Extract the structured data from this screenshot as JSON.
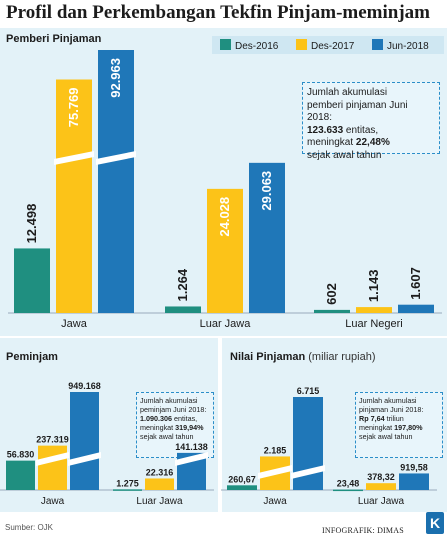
{
  "title": "Profil dan Perkembangan Tekfin Pinjam-meminjam",
  "colors": {
    "des2016": "#1f8f80",
    "des2017": "#fcc318",
    "jun2018": "#1f77b8",
    "panel": "#e3f2f8",
    "legend_bg": "#cfe7f2",
    "note_border": "#2b8ec9"
  },
  "legend": [
    {
      "label": "Des-2016",
      "color": "#1f8f80"
    },
    {
      "label": "Des-2017",
      "color": "#fcc318"
    },
    {
      "label": "Jun-2018",
      "color": "#1f77b8"
    }
  ],
  "top": {
    "label": "Pemberi Pinjaman",
    "note": {
      "line1": "Jumlah akumulasi",
      "line2": "pemberi pinjaman Juni 2018:",
      "line3_bold": "123.633",
      "line3_rest": " entitas,",
      "line4_pre": "meningkat ",
      "line4_bold": "22,48%",
      "line5": "sejak awal tahun"
    }
  },
  "bottom_left": {
    "label": "Peminjam",
    "note": {
      "line1": "Jumlah akumulasi",
      "line2": "peminjam Juni 2018:",
      "line3_bold": "1.090.306",
      "line3_rest": " entitas,",
      "line4_pre": "meningkat ",
      "line4_bold": "319,94%",
      "line5": "sejak awal tahun"
    }
  },
  "bottom_right": {
    "label": "Nilai Pinjaman",
    "sublabel": "(miliar rupiah)",
    "note": {
      "line1": "Jumlah akumulasi",
      "line2": "pinjaman Juni 2018:",
      "line3_bold": "Rp 7,64",
      "line3_rest": " triliun",
      "line4_pre": "meningkat ",
      "line4_bold": "197,80%",
      "line5": "sejak awal tahun"
    }
  },
  "source": "Sumber: OJK",
  "credit": "INFOGRAFIK: DIMAS",
  "logo": "K",
  "chart_data": [
    {
      "type": "bar",
      "title": "Pemberi Pinjaman",
      "categories": [
        "Jawa",
        "Luar Jawa",
        "Luar Negeri"
      ],
      "series": [
        {
          "name": "Des-2016",
          "values": [
            12498,
            1264,
            602
          ],
          "labels": [
            "12.498",
            "1.264",
            "602"
          ]
        },
        {
          "name": "Des-2017",
          "values": [
            75769,
            24028,
            1143
          ],
          "labels": [
            "75.769",
            "24.028",
            "1.143"
          ]
        },
        {
          "name": "Jun-2018",
          "values": [
            92963,
            29063,
            1607
          ],
          "labels": [
            "92.963",
            "29.063",
            "1.607"
          ]
        }
      ],
      "axis_break": true
    },
    {
      "type": "bar",
      "title": "Peminjam",
      "categories": [
        "Jawa",
        "Luar Jawa"
      ],
      "series": [
        {
          "name": "Des-2016",
          "values": [
            56830,
            1275
          ],
          "labels": [
            "56.830",
            "1.275"
          ]
        },
        {
          "name": "Des-2017",
          "values": [
            237319,
            22316
          ],
          "labels": [
            "237.319",
            "22.316"
          ]
        },
        {
          "name": "Jun-2018",
          "values": [
            949168,
            141138
          ],
          "labels": [
            "949.168",
            "141.138"
          ]
        }
      ],
      "axis_break": true
    },
    {
      "type": "bar",
      "title": "Nilai Pinjaman",
      "ylabel": "miliar rupiah",
      "categories": [
        "Jawa",
        "Luar Jawa"
      ],
      "series": [
        {
          "name": "Des-2016",
          "values": [
            260.67,
            23.48
          ],
          "labels": [
            "260,67",
            "23,48"
          ]
        },
        {
          "name": "Des-2017",
          "values": [
            2185,
            378.32
          ],
          "labels": [
            "2.185",
            "378,32"
          ]
        },
        {
          "name": "Jun-2018",
          "values": [
            6715,
            919.58
          ],
          "labels": [
            "6.715",
            "919,58"
          ]
        }
      ],
      "axis_break": true
    }
  ]
}
